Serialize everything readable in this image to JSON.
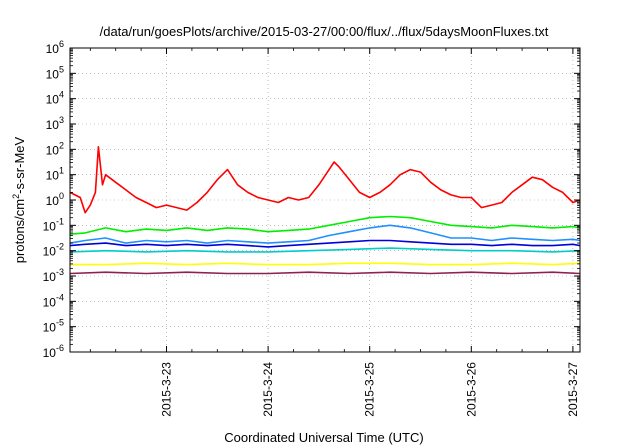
{
  "chart_data": {
    "type": "line",
    "title": "/data/run/goesPlots/archive/2015-03-27/00:00/flux/../flux/5daysMoonFluxes.txt",
    "xlabel": "Coordinated Universal Time (UTC)",
    "ylabel_parts": {
      "pre": "protons/cm",
      "sup": "2",
      "post": "-s-sr-MeV"
    },
    "yscale": "log",
    "ylim_exp": [
      -6,
      6
    ],
    "ytick_base": "10",
    "yticks_exp": [
      -6,
      -5,
      -4,
      -3,
      -2,
      -1,
      0,
      1,
      2,
      3,
      4,
      5,
      6
    ],
    "xlim_days": [
      22.05,
      27.07
    ],
    "xticks": [
      {
        "label": "2015-3-23",
        "day": 23
      },
      {
        "label": "2015-3-24",
        "day": 24
      },
      {
        "label": "2015-3-25",
        "day": 25
      },
      {
        "label": "2015-3-26",
        "day": 26
      },
      {
        "label": "2015-3-27",
        "day": 27
      }
    ],
    "grid": true,
    "series": [
      {
        "color": "#ff0000",
        "day": [
          22.05,
          22.15,
          22.2,
          22.25,
          22.3,
          22.33,
          22.37,
          22.4,
          22.5,
          22.6,
          22.7,
          22.8,
          22.9,
          23.0,
          23.1,
          23.2,
          23.3,
          23.4,
          23.5,
          23.6,
          23.7,
          23.8,
          23.9,
          24.0,
          24.1,
          24.2,
          24.3,
          24.4,
          24.5,
          24.6,
          24.65,
          24.7,
          24.8,
          24.9,
          25.0,
          25.1,
          25.2,
          25.3,
          25.4,
          25.5,
          25.6,
          25.7,
          25.8,
          25.9,
          26.0,
          26.1,
          26.2,
          26.3,
          26.4,
          26.5,
          26.6,
          26.7,
          26.8,
          26.9,
          27.0,
          27.07
        ],
        "log_y": [
          0.3,
          0.1,
          -0.5,
          -0.2,
          0.3,
          2.1,
          0.6,
          1.0,
          0.7,
          0.4,
          0.1,
          -0.1,
          -0.3,
          -0.2,
          -0.3,
          -0.4,
          -0.1,
          0.3,
          0.8,
          1.2,
          0.6,
          0.3,
          0.1,
          0.0,
          -0.1,
          0.1,
          0.0,
          0.1,
          0.6,
          1.2,
          1.5,
          1.3,
          0.8,
          0.3,
          0.1,
          0.3,
          0.6,
          1.0,
          1.2,
          1.1,
          0.7,
          0.4,
          0.2,
          0.1,
          0.1,
          -0.3,
          -0.2,
          -0.1,
          0.3,
          0.6,
          0.9,
          0.8,
          0.5,
          0.3,
          -0.1,
          0.0
        ]
      },
      {
        "color": "#00ee00",
        "day": [
          22.05,
          22.2,
          22.4,
          22.6,
          22.8,
          23.0,
          23.2,
          23.4,
          23.6,
          23.8,
          24.0,
          24.2,
          24.4,
          24.6,
          24.8,
          25.0,
          25.2,
          25.4,
          25.6,
          25.8,
          26.0,
          26.2,
          26.4,
          26.6,
          26.8,
          27.0,
          27.07
        ],
        "log_y": [
          -1.35,
          -1.3,
          -1.1,
          -1.25,
          -1.15,
          -1.2,
          -1.1,
          -1.2,
          -1.1,
          -1.15,
          -1.25,
          -1.2,
          -1.15,
          -1.0,
          -0.85,
          -0.7,
          -0.65,
          -0.7,
          -0.85,
          -1.0,
          -1.05,
          -1.1,
          -1.0,
          -1.05,
          -1.1,
          -1.05,
          -1.1
        ]
      },
      {
        "color": "#1e90ff",
        "day": [
          22.05,
          22.2,
          22.4,
          22.6,
          22.8,
          23.0,
          23.2,
          23.4,
          23.6,
          23.8,
          24.0,
          24.2,
          24.4,
          24.6,
          24.8,
          25.0,
          25.2,
          25.4,
          25.6,
          25.8,
          26.0,
          26.2,
          26.4,
          26.6,
          26.8,
          27.0,
          27.07
        ],
        "log_y": [
          -1.7,
          -1.6,
          -1.5,
          -1.7,
          -1.6,
          -1.65,
          -1.6,
          -1.7,
          -1.6,
          -1.65,
          -1.7,
          -1.65,
          -1.6,
          -1.4,
          -1.25,
          -1.1,
          -1.0,
          -1.1,
          -1.3,
          -1.5,
          -1.5,
          -1.6,
          -1.5,
          -1.55,
          -1.6,
          -1.55,
          -1.6
        ]
      },
      {
        "color": "#0000dd",
        "day": [
          22.05,
          22.2,
          22.4,
          22.6,
          22.8,
          23.0,
          23.2,
          23.4,
          23.6,
          23.8,
          24.0,
          24.2,
          24.4,
          24.6,
          24.8,
          25.0,
          25.2,
          25.4,
          25.6,
          25.8,
          26.0,
          26.2,
          26.4,
          26.6,
          26.8,
          27.0,
          27.07
        ],
        "log_y": [
          -1.8,
          -1.75,
          -1.7,
          -1.8,
          -1.75,
          -1.8,
          -1.75,
          -1.8,
          -1.75,
          -1.8,
          -1.85,
          -1.8,
          -1.75,
          -1.7,
          -1.65,
          -1.6,
          -1.6,
          -1.65,
          -1.7,
          -1.75,
          -1.75,
          -1.8,
          -1.75,
          -1.8,
          -1.8,
          -1.75,
          -1.8
        ]
      },
      {
        "color": "#00cccc",
        "day": [
          22.05,
          22.4,
          22.8,
          23.2,
          23.6,
          24.0,
          24.4,
          24.8,
          25.2,
          25.6,
          26.0,
          26.4,
          26.8,
          27.07
        ],
        "log_y": [
          -2.05,
          -2.0,
          -2.05,
          -2.0,
          -2.05,
          -2.05,
          -2.0,
          -1.95,
          -1.9,
          -1.95,
          -2.0,
          -2.0,
          -2.05,
          -2.0
        ]
      },
      {
        "color": "#ffff00",
        "day": [
          22.05,
          22.4,
          22.8,
          23.2,
          23.6,
          24.0,
          24.4,
          24.8,
          25.2,
          25.6,
          26.0,
          26.4,
          26.8,
          27.07
        ],
        "log_y": [
          -2.55,
          -2.55,
          -2.5,
          -2.55,
          -2.5,
          -2.55,
          -2.55,
          -2.5,
          -2.5,
          -2.55,
          -2.55,
          -2.5,
          -2.55,
          -2.5
        ]
      },
      {
        "color": "#8b2252",
        "day": [
          22.05,
          22.4,
          22.8,
          23.2,
          23.6,
          24.0,
          24.4,
          24.8,
          25.2,
          25.6,
          26.0,
          26.4,
          26.8,
          27.07
        ],
        "log_y": [
          -2.9,
          -2.85,
          -2.9,
          -2.85,
          -2.9,
          -2.9,
          -2.85,
          -2.9,
          -2.85,
          -2.9,
          -2.85,
          -2.9,
          -2.85,
          -2.9
        ]
      }
    ]
  }
}
